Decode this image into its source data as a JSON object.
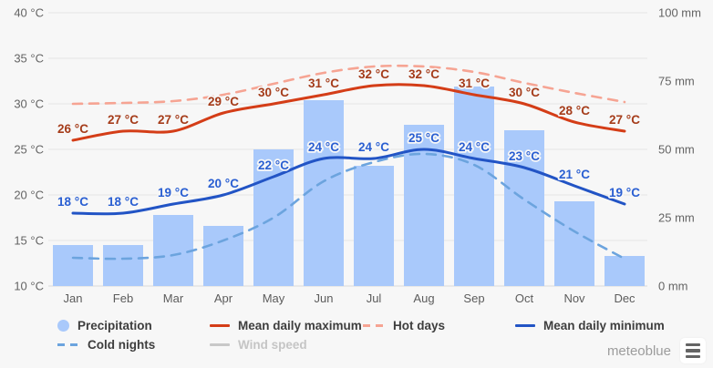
{
  "chart_data": {
    "type": "combo",
    "description": "Climate chart: monthly precipitation bars (right axis, mm) with temperature lines (left axis, °C)",
    "categories": [
      "Jan",
      "Feb",
      "Mar",
      "Apr",
      "May",
      "Jun",
      "Jul",
      "Aug",
      "Sep",
      "Oct",
      "Nov",
      "Dec"
    ],
    "y_left": {
      "unit": "°C",
      "min": 10,
      "max": 40,
      "tick_values": [
        40,
        35,
        30,
        25,
        20,
        15,
        10
      ],
      "tick_labels": [
        "40 °C",
        "35 °C",
        "30 °C",
        "25 °C",
        "20 °C",
        "15 °C",
        "10 °C"
      ]
    },
    "y_right": {
      "unit": "mm",
      "min": 0,
      "max": 100,
      "tick_values": [
        100,
        75,
        50,
        25,
        0
      ],
      "tick_labels": [
        "100 mm",
        "75 mm",
        "50 mm",
        "25 mm",
        "0 mm"
      ]
    },
    "grid": true,
    "legend_position": "bottom",
    "series": [
      {
        "name": "Precipitation",
        "type": "bar",
        "axis": "right",
        "unit": "mm",
        "color": "#a9c9fb",
        "values": [
          15,
          15,
          26,
          22,
          50,
          68,
          44,
          59,
          73,
          57,
          31,
          11
        ],
        "note": "values estimated from bar heights"
      },
      {
        "name": "Hot days",
        "type": "line",
        "style": "dashed",
        "axis": "left",
        "unit": "°C",
        "color": "#f6a493",
        "show_point_labels": false,
        "values": [
          30,
          30.1,
          30.3,
          31,
          32.2,
          33.4,
          34.1,
          34.1,
          33.5,
          32.3,
          31.2,
          30.2
        ],
        "note": "unlabeled dashed line; plotted position estimated against left axis"
      },
      {
        "name": "Cold nights",
        "type": "line",
        "style": "dashed",
        "axis": "left",
        "unit": "°C",
        "color": "#6ca4de",
        "show_point_labels": false,
        "values": [
          13.1,
          13,
          13.4,
          15,
          17.5,
          21.5,
          23.6,
          24.5,
          23.3,
          19.5,
          16,
          13
        ],
        "note": "unlabeled dashed line; plotted position estimated against left axis"
      },
      {
        "name": "Mean daily maximum",
        "type": "line",
        "style": "solid",
        "axis": "left",
        "unit": "°C",
        "color": "#d43d17",
        "label_color": "#a53c1a",
        "show_point_labels": true,
        "values": [
          26,
          27,
          27,
          29,
          30,
          31,
          32,
          32,
          31,
          30,
          28,
          27
        ]
      },
      {
        "name": "Mean daily minimum",
        "type": "line",
        "style": "solid",
        "axis": "left",
        "unit": "°C",
        "color": "#2254c5",
        "label_color": "#2a5fd2",
        "show_point_labels": true,
        "values": [
          18,
          18,
          19,
          20,
          22,
          24,
          24,
          25,
          24,
          23,
          21,
          19
        ]
      },
      {
        "name": "Wind speed",
        "type": "line",
        "style": "solid",
        "axis": "left",
        "color": "#c8c8c8",
        "visible": false,
        "values": null
      }
    ]
  },
  "legend": {
    "items": [
      {
        "label": "Precipitation",
        "swatch": "circle",
        "color": "#a9c9fb",
        "enabled": true
      },
      {
        "label": "Mean daily maximum",
        "swatch": "line",
        "color": "#d43d17",
        "enabled": true
      },
      {
        "label": "Hot days",
        "swatch": "dashed-line",
        "color": "#f6a493",
        "enabled": true
      },
      {
        "label": "Mean daily minimum",
        "swatch": "line",
        "color": "#2254c5",
        "enabled": true
      },
      {
        "label": "Cold nights",
        "swatch": "dashed-line",
        "color": "#6ca4de",
        "enabled": true
      },
      {
        "label": "Wind speed",
        "swatch": "line",
        "color": "#c8c8c8",
        "enabled": false
      }
    ]
  },
  "branding": {
    "logo_text": "meteoblue"
  },
  "colors": {
    "background": "#f7f7f7",
    "gridline": "#e4e4e4",
    "baseline": "#d9d9d9",
    "axis_text": "#646464",
    "legend_text": "#3e3e3e",
    "legend_disabled_text": "#c5c5c5",
    "brand_text": "#9c9c9c",
    "menu_icon": "#646464"
  }
}
